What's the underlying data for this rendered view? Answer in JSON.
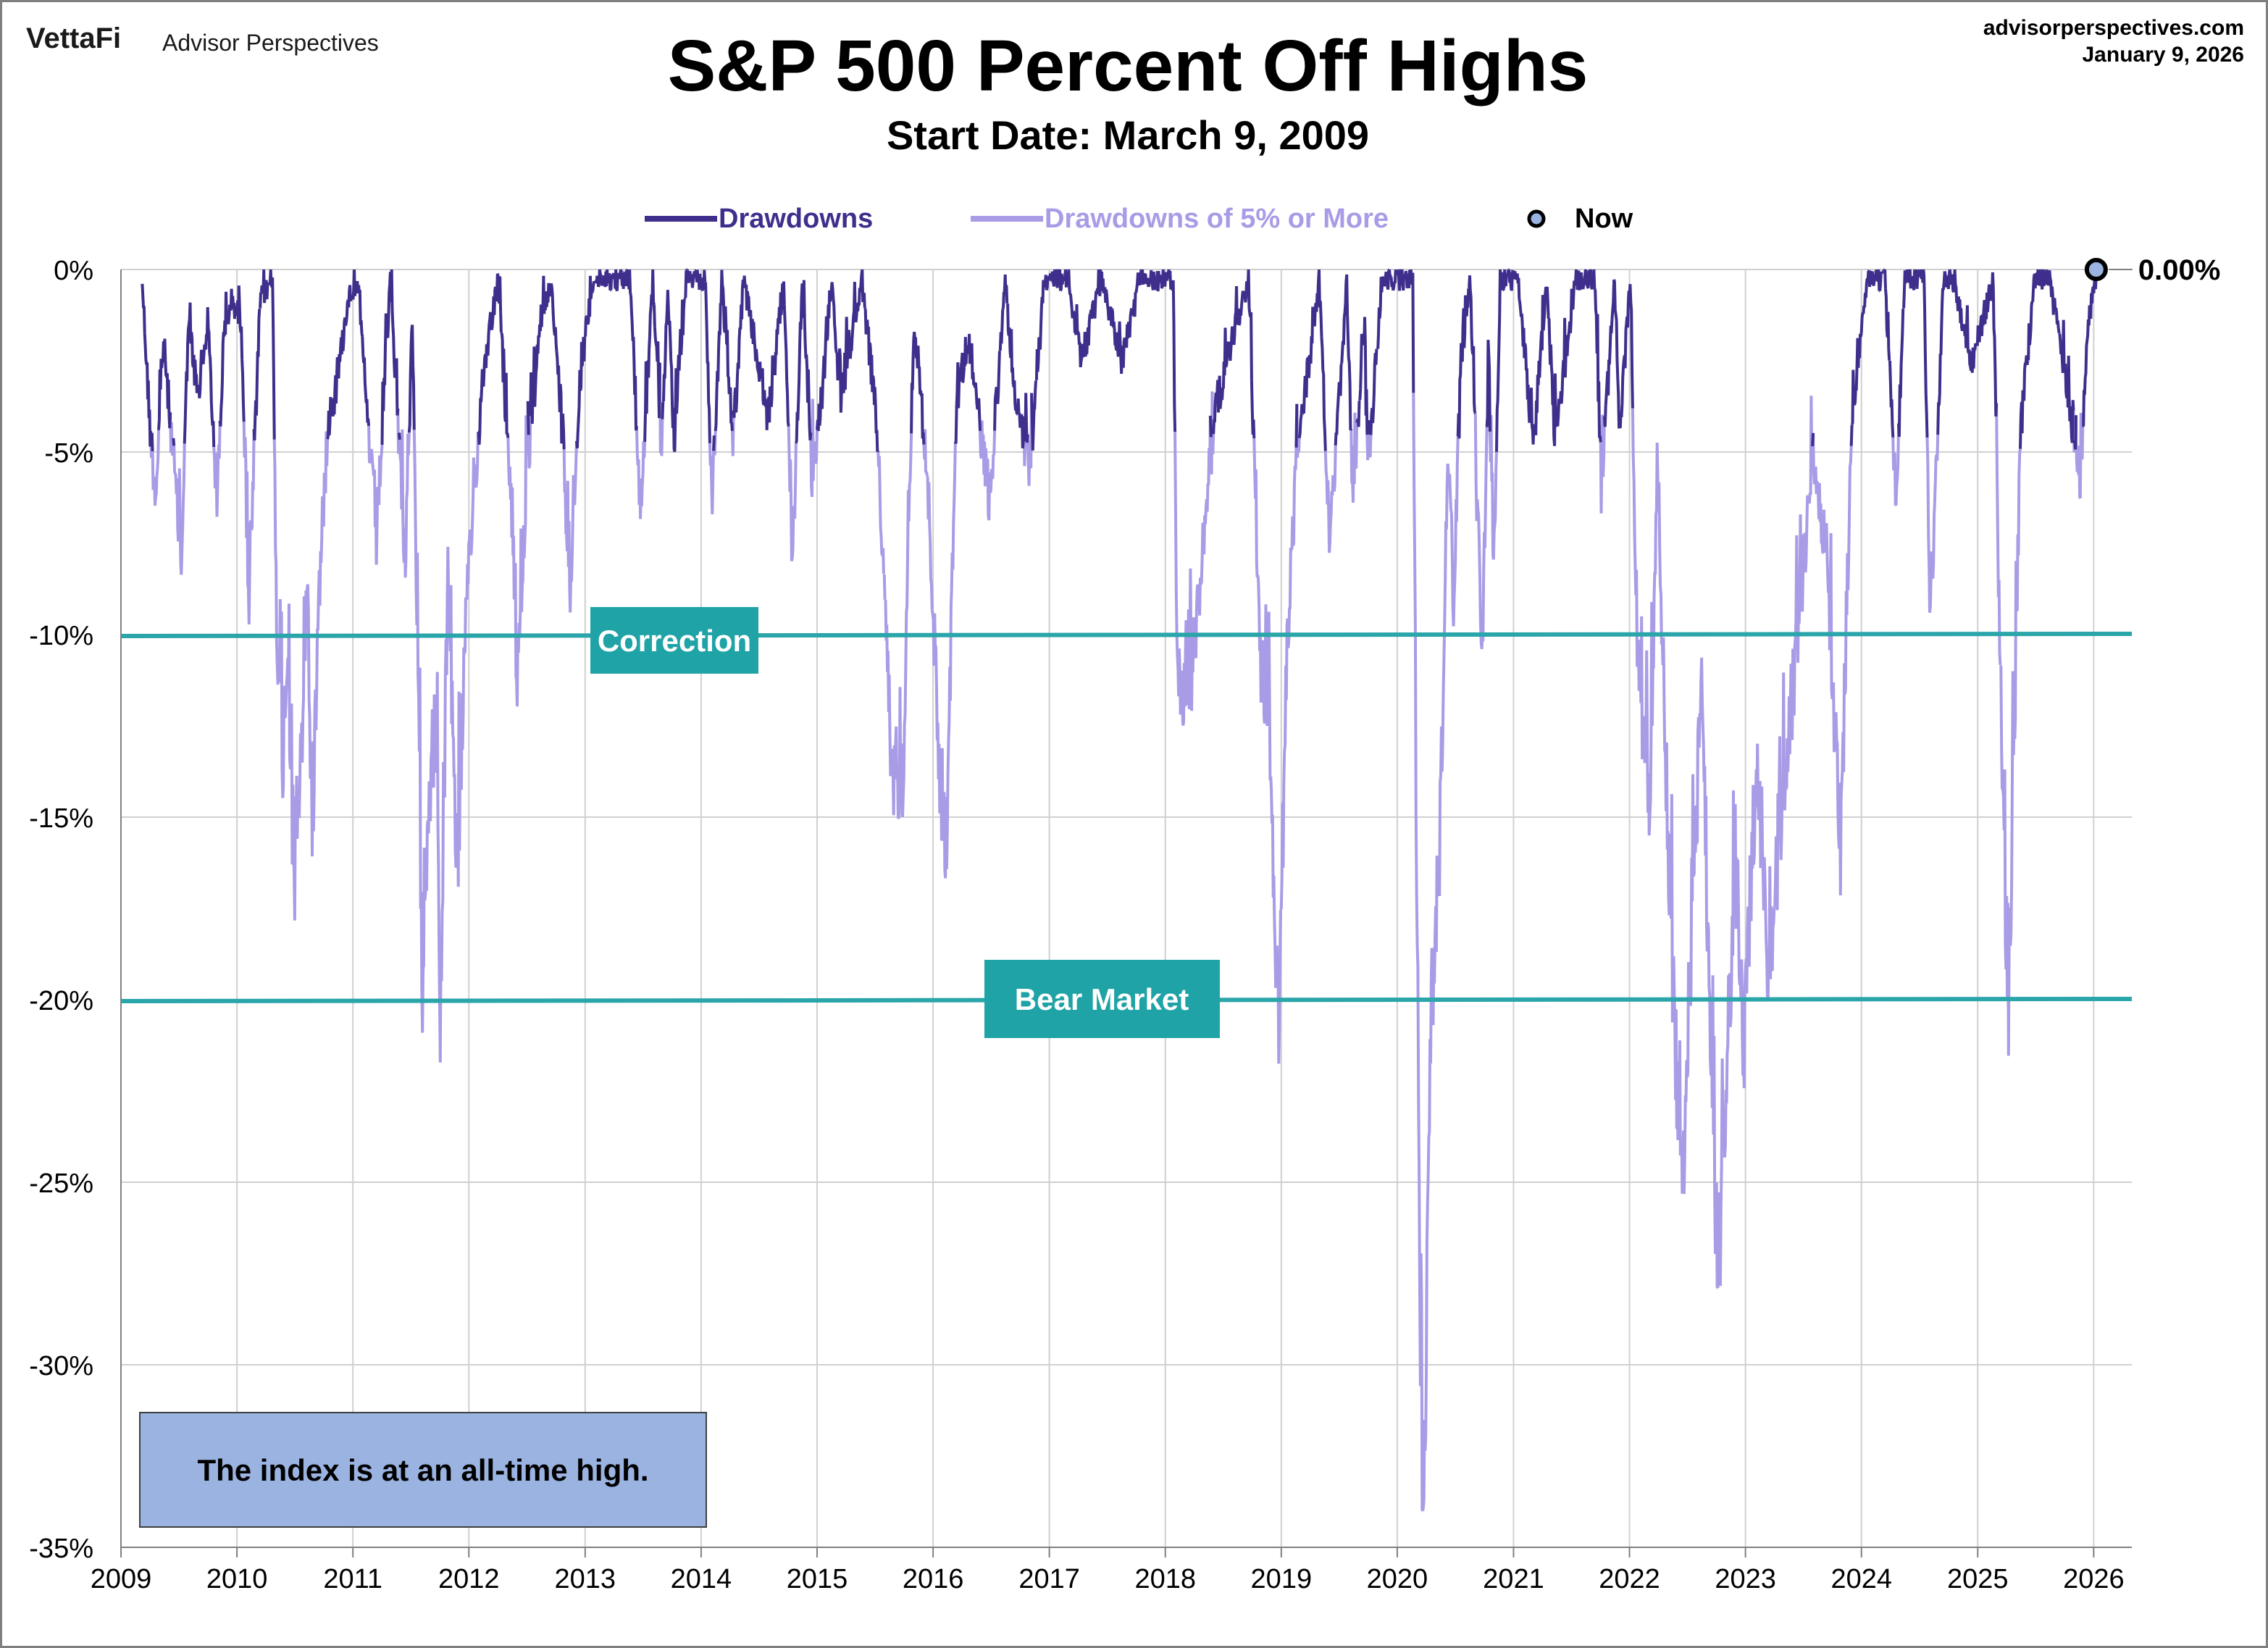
{
  "header": {
    "brand_vettafi": "VettaFi",
    "brand_advisor": "Advisor Perspectives",
    "title": "S&P 500 Percent Off Highs",
    "subtitle": "Start Date: March 9, 2009",
    "site": "advisorperspectives.com",
    "date": "January 9, 2026"
  },
  "legend": {
    "drawdowns": "Drawdowns",
    "drawdowns_5": "Drawdowns of 5% or More",
    "now": "Now"
  },
  "annotations": {
    "correction": "Correction",
    "bear_market": "Bear Market",
    "note": "The index is at an all-time high.",
    "now_value": "0.00%"
  },
  "colors": {
    "drawdown": "#3f2e8c",
    "drawdown_5": "#a99be6",
    "threshold_line": "#2aa5aa",
    "label_box": "#1fa3a6",
    "note_box": "#9ab3e0",
    "now_marker": "#9ab3e0",
    "grid": "#d0d0d0"
  },
  "chart_data": {
    "type": "line",
    "title": "S&P 500 Percent Off Highs",
    "subtitle": "Start Date: March 9, 2009",
    "xlabel": "",
    "ylabel": "",
    "xlim": [
      "2009-01-01",
      "2026-05-01"
    ],
    "ylim": [
      -35,
      0
    ],
    "x_ticks": [
      "2009",
      "2010",
      "2011",
      "2012",
      "2013",
      "2014",
      "2015",
      "2016",
      "2017",
      "2018",
      "2019",
      "2020",
      "2021",
      "2022",
      "2023",
      "2024",
      "2025",
      "2026"
    ],
    "y_ticks": [
      0,
      -5,
      -10,
      -15,
      -20,
      -25,
      -30,
      -35
    ],
    "y_tick_labels": [
      "0%",
      "-5%",
      "-10%",
      "-15%",
      "-20%",
      "-25%",
      "-30%",
      "-35%"
    ],
    "grid": true,
    "legend_position": "top",
    "thresholds": [
      {
        "label": "Correction",
        "y": -10
      },
      {
        "label": "Bear Market",
        "y": -20
      }
    ],
    "now_point": {
      "x": "2026-01-09",
      "y": 0.0,
      "label": "0.00%"
    },
    "series": [
      {
        "name": "Drawdowns",
        "note": "",
        "points": [
          [
            "2009-03-09",
            0
          ],
          [
            "2009-04-01",
            -3.5
          ],
          [
            "2009-04-20",
            -5.4
          ],
          [
            "2009-05-15",
            -1.5
          ],
          [
            "2009-06-15",
            -4.5
          ],
          [
            "2009-07-10",
            -7.1
          ],
          [
            "2009-08-01",
            -1.0
          ],
          [
            "2009-09-01",
            -3.0
          ],
          [
            "2009-10-01",
            -1.0
          ],
          [
            "2009-10-30",
            -5.6
          ],
          [
            "2009-11-20",
            -1.5
          ],
          [
            "2009-12-15",
            -0.5
          ],
          [
            "2010-01-15",
            -1.0
          ],
          [
            "2010-02-08",
            -8.1
          ],
          [
            "2010-03-15",
            -0.5
          ],
          [
            "2010-04-23",
            0
          ],
          [
            "2010-05-06",
            -8.5
          ],
          [
            "2010-05-25",
            -12.0
          ],
          [
            "2010-06-10",
            -9.0
          ],
          [
            "2010-07-02",
            -16.0
          ],
          [
            "2010-07-20",
            -12.5
          ],
          [
            "2010-08-10",
            -7.5
          ],
          [
            "2010-08-26",
            -14.0
          ],
          [
            "2010-09-15",
            -8.0
          ],
          [
            "2010-10-15",
            -3.5
          ],
          [
            "2010-11-15",
            -2.5
          ],
          [
            "2010-12-15",
            -0.5
          ],
          [
            "2011-01-15",
            0
          ],
          [
            "2011-03-16",
            -6.5
          ],
          [
            "2011-04-29",
            0
          ],
          [
            "2011-06-15",
            -7.0
          ],
          [
            "2011-07-07",
            -1.0
          ],
          [
            "2011-08-08",
            -17.8
          ],
          [
            "2011-08-25",
            -13.0
          ],
          [
            "2011-09-20",
            -11.0
          ],
          [
            "2011-10-03",
            -19.4
          ],
          [
            "2011-10-27",
            -7.0
          ],
          [
            "2011-11-25",
            -15.0
          ],
          [
            "2011-12-20",
            -9.0
          ],
          [
            "2012-01-20",
            -5.0
          ],
          [
            "2012-02-20",
            -2.0
          ],
          [
            "2012-04-02",
            0
          ],
          [
            "2012-05-15",
            -6.0
          ],
          [
            "2012-06-01",
            -10.0
          ],
          [
            "2012-07-01",
            -5.0
          ],
          [
            "2012-08-15",
            -1.0
          ],
          [
            "2012-09-14",
            0
          ],
          [
            "2012-10-15",
            -3.0
          ],
          [
            "2012-11-15",
            -7.7
          ],
          [
            "2012-12-15",
            -2.5
          ],
          [
            "2013-01-25",
            0
          ],
          [
            "2013-03-15",
            0
          ],
          [
            "2013-05-21",
            0
          ],
          [
            "2013-06-24",
            -5.8
          ],
          [
            "2013-08-02",
            0
          ],
          [
            "2013-08-30",
            -4.5
          ],
          [
            "2013-09-18",
            0
          ],
          [
            "2013-10-08",
            -4.0
          ],
          [
            "2013-11-15",
            0
          ],
          [
            "2014-01-15",
            0
          ],
          [
            "2014-02-03",
            -5.8
          ],
          [
            "2014-03-07",
            0
          ],
          [
            "2014-04-11",
            -4.0
          ],
          [
            "2014-05-15",
            0
          ],
          [
            "2014-07-31",
            -3.5
          ],
          [
            "2014-09-18",
            0
          ],
          [
            "2014-10-15",
            -7.4
          ],
          [
            "2014-11-15",
            0
          ],
          [
            "2014-12-16",
            -5.0
          ],
          [
            "2015-01-15",
            -3.0
          ],
          [
            "2015-02-15",
            0
          ],
          [
            "2015-03-15",
            -3.0
          ],
          [
            "2015-05-21",
            0
          ],
          [
            "2015-07-08",
            -3.5
          ],
          [
            "2015-08-24",
            -12.4
          ],
          [
            "2015-09-29",
            -12.2
          ],
          [
            "2015-10-15",
            -6.0
          ],
          [
            "2015-11-03",
            -1.0
          ],
          [
            "2015-12-15",
            -5.0
          ],
          [
            "2016-01-20",
            -12.0
          ],
          [
            "2016-02-11",
            -14.2
          ],
          [
            "2016-03-15",
            -3.0
          ],
          [
            "2016-04-20",
            -1.5
          ],
          [
            "2016-06-27",
            -5.5
          ],
          [
            "2016-08-15",
            0
          ],
          [
            "2016-09-15",
            -3.0
          ],
          [
            "2016-11-04",
            -4.8
          ],
          [
            "2016-12-15",
            0
          ],
          [
            "2017-03-01",
            0
          ],
          [
            "2017-04-13",
            -2.0
          ],
          [
            "2017-06-15",
            0
          ],
          [
            "2017-08-18",
            -2.0
          ],
          [
            "2017-10-15",
            0
          ],
          [
            "2017-12-15",
            0
          ],
          [
            "2018-01-26",
            0
          ],
          [
            "2018-02-08",
            -10.2
          ],
          [
            "2018-03-23",
            -10.1
          ],
          [
            "2018-04-15",
            -8.0
          ],
          [
            "2018-05-15",
            -5.0
          ],
          [
            "2018-06-15",
            -3.0
          ],
          [
            "2018-08-15",
            -1.0
          ],
          [
            "2018-09-20",
            0
          ],
          [
            "2018-10-29",
            -9.9
          ],
          [
            "2018-11-23",
            -10.2
          ],
          [
            "2018-12-24",
            -19.8
          ],
          [
            "2019-01-15",
            -10.0
          ],
          [
            "2019-02-15",
            -5.0
          ],
          [
            "2019-03-15",
            -3.0
          ],
          [
            "2019-04-30",
            0
          ],
          [
            "2019-06-03",
            -6.8
          ],
          [
            "2019-07-26",
            0
          ],
          [
            "2019-08-15",
            -6.1
          ],
          [
            "2019-09-15",
            -1.0
          ],
          [
            "2019-10-02",
            -4.5
          ],
          [
            "2019-11-15",
            0
          ],
          [
            "2019-12-15",
            0
          ],
          [
            "2020-02-19",
            0
          ],
          [
            "2020-03-12",
            -26.7
          ],
          [
            "2020-03-23",
            -33.9
          ],
          [
            "2020-04-15",
            -19.0
          ],
          [
            "2020-05-15",
            -14.0
          ],
          [
            "2020-06-08",
            -4.0
          ],
          [
            "2020-06-26",
            -8.0
          ],
          [
            "2020-07-20",
            -2.0
          ],
          [
            "2020-08-18",
            0
          ],
          [
            "2020-09-23",
            -9.6
          ],
          [
            "2020-10-15",
            -2.0
          ],
          [
            "2020-10-30",
            -7.7
          ],
          [
            "2020-11-20",
            0
          ],
          [
            "2021-01-15",
            0
          ],
          [
            "2021-03-04",
            -4.2
          ],
          [
            "2021-04-15",
            0
          ],
          [
            "2021-05-12",
            -4.0
          ],
          [
            "2021-07-15",
            0
          ],
          [
            "2021-09-15",
            0
          ],
          [
            "2021-10-04",
            -5.2
          ],
          [
            "2021-11-15",
            0
          ],
          [
            "2021-12-01",
            -4.0
          ],
          [
            "2022-01-03",
            0
          ],
          [
            "2022-01-27",
            -9.8
          ],
          [
            "2022-03-08",
            -13.0
          ],
          [
            "2022-03-29",
            -4.5
          ],
          [
            "2022-05-20",
            -18.7
          ],
          [
            "2022-06-16",
            -23.6
          ],
          [
            "2022-08-16",
            -9.7
          ],
          [
            "2022-09-30",
            -24.8
          ],
          [
            "2022-10-12",
            -25.4
          ],
          [
            "2022-11-30",
            -14.5
          ],
          [
            "2022-12-28",
            -20.0
          ],
          [
            "2023-01-15",
            -16.0
          ],
          [
            "2023-02-02",
            -12.5
          ],
          [
            "2023-03-13",
            -18.0
          ],
          [
            "2023-04-15",
            -14.0
          ],
          [
            "2023-06-15",
            -9.0
          ],
          [
            "2023-07-31",
            -4.3
          ],
          [
            "2023-09-15",
            -7.0
          ],
          [
            "2023-10-27",
            -14.2
          ],
          [
            "2023-11-30",
            -4.0
          ],
          [
            "2024-01-19",
            0
          ],
          [
            "2024-03-15",
            0
          ],
          [
            "2024-04-19",
            -5.5
          ],
          [
            "2024-05-15",
            0
          ],
          [
            "2024-07-16",
            0
          ],
          [
            "2024-08-05",
            -8.5
          ],
          [
            "2024-09-15",
            0
          ],
          [
            "2024-10-15",
            0
          ],
          [
            "2024-12-15",
            -2.0
          ],
          [
            "2025-02-19",
            0
          ],
          [
            "2025-03-13",
            -10.1
          ],
          [
            "2025-04-08",
            -18.9
          ],
          [
            "2025-05-15",
            -4.0
          ],
          [
            "2025-06-27",
            0
          ],
          [
            "2025-08-15",
            0
          ],
          [
            "2025-10-10",
            -2.7
          ],
          [
            "2025-11-20",
            -5.1
          ],
          [
            "2025-12-15",
            -1.0
          ],
          [
            "2026-01-09",
            0
          ]
        ]
      },
      {
        "name": "Drawdowns of 5% or More",
        "note": "",
        "threshold": -5
      }
    ]
  }
}
